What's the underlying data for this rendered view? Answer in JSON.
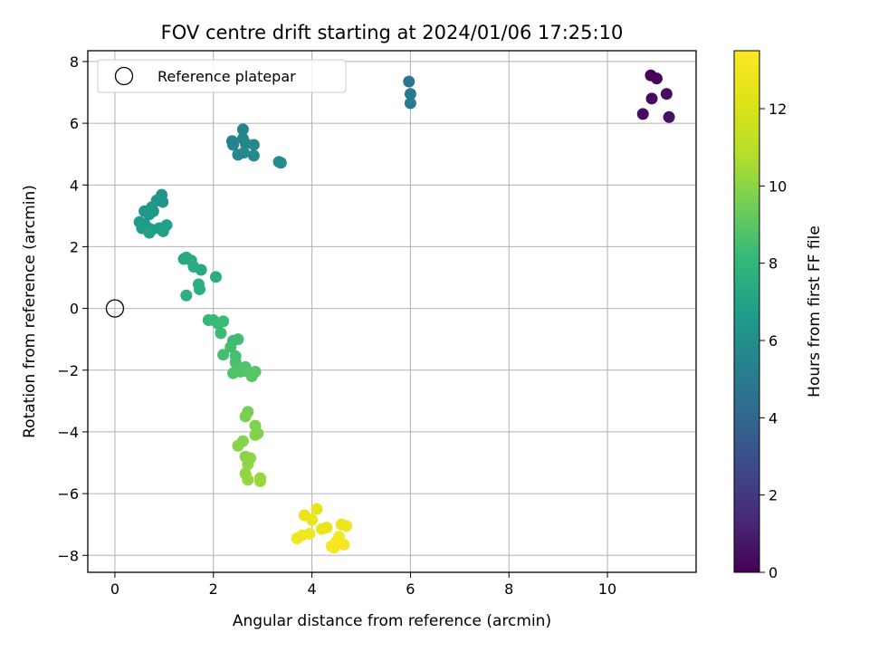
{
  "chart_data": {
    "type": "scatter",
    "title": "FOV centre drift starting at 2024/01/06 17:25:10",
    "xlabel": "Angular distance from reference (arcmin)",
    "ylabel": "Rotation from reference (arcmin)",
    "xlim": [
      -0.55,
      11.8
    ],
    "ylim": [
      -8.55,
      8.35
    ],
    "xticks": [
      0,
      2,
      4,
      6,
      8,
      10
    ],
    "yticks": [
      -8,
      -6,
      -4,
      -2,
      0,
      2,
      4,
      6,
      8
    ],
    "grid": true,
    "legend": {
      "placement": "top-left",
      "entries": [
        "Reference platepar"
      ]
    },
    "reference_point": {
      "x": 0,
      "y": 0,
      "label": "Reference platepar"
    },
    "colorbar": {
      "label": "Hours from first FF file",
      "min": 0,
      "max": 13.5,
      "ticks": [
        0,
        2,
        4,
        6,
        8,
        10,
        12
      ],
      "colormap": "viridis"
    },
    "points": [
      {
        "x": 10.88,
        "y": 7.55,
        "t": 0.1
      },
      {
        "x": 11.0,
        "y": 7.45,
        "t": 0.2
      },
      {
        "x": 10.9,
        "y": 6.8,
        "t": 0.3
      },
      {
        "x": 11.2,
        "y": 6.95,
        "t": 0.4
      },
      {
        "x": 10.72,
        "y": 6.3,
        "t": 0.5
      },
      {
        "x": 11.25,
        "y": 6.2,
        "t": 0.6
      },
      {
        "x": 5.97,
        "y": 7.35,
        "t": 4.8
      },
      {
        "x": 6.0,
        "y": 6.95,
        "t": 4.9
      },
      {
        "x": 6.0,
        "y": 6.65,
        "t": 5.0
      },
      {
        "x": 2.38,
        "y": 5.42,
        "t": 5.4
      },
      {
        "x": 2.4,
        "y": 5.3,
        "t": 5.45
      },
      {
        "x": 2.6,
        "y": 5.8,
        "t": 5.5
      },
      {
        "x": 2.6,
        "y": 5.5,
        "t": 5.55
      },
      {
        "x": 2.65,
        "y": 5.35,
        "t": 5.6
      },
      {
        "x": 2.82,
        "y": 5.3,
        "t": 5.65
      },
      {
        "x": 2.5,
        "y": 4.98,
        "t": 5.7
      },
      {
        "x": 2.62,
        "y": 5.05,
        "t": 5.75
      },
      {
        "x": 2.82,
        "y": 4.95,
        "t": 5.8
      },
      {
        "x": 3.33,
        "y": 4.75,
        "t": 5.9
      },
      {
        "x": 3.37,
        "y": 4.72,
        "t": 5.95
      },
      {
        "x": 0.95,
        "y": 3.68,
        "t": 6.2
      },
      {
        "x": 0.85,
        "y": 3.5,
        "t": 6.25
      },
      {
        "x": 0.97,
        "y": 3.45,
        "t": 6.3
      },
      {
        "x": 0.75,
        "y": 3.28,
        "t": 6.35
      },
      {
        "x": 0.6,
        "y": 3.15,
        "t": 6.4
      },
      {
        "x": 0.7,
        "y": 3.05,
        "t": 6.45
      },
      {
        "x": 0.78,
        "y": 3.15,
        "t": 6.5
      },
      {
        "x": 0.5,
        "y": 2.8,
        "t": 6.55
      },
      {
        "x": 0.6,
        "y": 2.75,
        "t": 6.6
      },
      {
        "x": 0.55,
        "y": 2.6,
        "t": 6.65
      },
      {
        "x": 0.68,
        "y": 2.6,
        "t": 6.7
      },
      {
        "x": 0.75,
        "y": 2.55,
        "t": 6.75
      },
      {
        "x": 0.9,
        "y": 2.6,
        "t": 6.8
      },
      {
        "x": 0.98,
        "y": 2.5,
        "t": 6.85
      },
      {
        "x": 1.05,
        "y": 2.7,
        "t": 6.9
      },
      {
        "x": 0.7,
        "y": 2.45,
        "t": 6.95
      },
      {
        "x": 1.4,
        "y": 1.6,
        "t": 7.3
      },
      {
        "x": 1.45,
        "y": 1.65,
        "t": 7.35
      },
      {
        "x": 1.55,
        "y": 1.55,
        "t": 7.4
      },
      {
        "x": 1.6,
        "y": 1.35,
        "t": 7.45
      },
      {
        "x": 1.75,
        "y": 1.25,
        "t": 7.5
      },
      {
        "x": 2.05,
        "y": 1.02,
        "t": 7.55
      },
      {
        "x": 1.7,
        "y": 0.78,
        "t": 7.6
      },
      {
        "x": 1.72,
        "y": 0.62,
        "t": 7.65
      },
      {
        "x": 1.45,
        "y": 0.42,
        "t": 7.7
      },
      {
        "x": 1.9,
        "y": -0.38,
        "t": 8.1
      },
      {
        "x": 2.0,
        "y": -0.38,
        "t": 8.15
      },
      {
        "x": 2.1,
        "y": -0.5,
        "t": 8.2
      },
      {
        "x": 2.2,
        "y": -0.42,
        "t": 8.25
      },
      {
        "x": 2.15,
        "y": -0.8,
        "t": 8.3
      },
      {
        "x": 2.4,
        "y": -1.05,
        "t": 8.35
      },
      {
        "x": 2.5,
        "y": -1.0,
        "t": 8.4
      },
      {
        "x": 2.35,
        "y": -1.25,
        "t": 8.45
      },
      {
        "x": 2.2,
        "y": -1.5,
        "t": 8.5
      },
      {
        "x": 2.45,
        "y": -1.55,
        "t": 8.55
      },
      {
        "x": 2.45,
        "y": -1.75,
        "t": 8.6
      },
      {
        "x": 2.5,
        "y": -1.95,
        "t": 8.65
      },
      {
        "x": 2.65,
        "y": -1.9,
        "t": 8.7
      },
      {
        "x": 2.4,
        "y": -2.1,
        "t": 8.75
      },
      {
        "x": 2.55,
        "y": -2.05,
        "t": 8.8
      },
      {
        "x": 2.7,
        "y": -2.05,
        "t": 8.85
      },
      {
        "x": 2.85,
        "y": -2.05,
        "t": 8.9
      },
      {
        "x": 2.78,
        "y": -2.2,
        "t": 8.95
      },
      {
        "x": 2.7,
        "y": -3.35,
        "t": 9.6
      },
      {
        "x": 2.65,
        "y": -3.5,
        "t": 9.65
      },
      {
        "x": 2.85,
        "y": -3.8,
        "t": 9.7
      },
      {
        "x": 2.9,
        "y": -4.05,
        "t": 9.75
      },
      {
        "x": 2.85,
        "y": -4.1,
        "t": 9.8
      },
      {
        "x": 2.6,
        "y": -4.3,
        "t": 9.85
      },
      {
        "x": 2.5,
        "y": -4.45,
        "t": 9.9
      },
      {
        "x": 2.65,
        "y": -4.8,
        "t": 9.95
      },
      {
        "x": 2.75,
        "y": -4.85,
        "t": 10.0
      },
      {
        "x": 2.7,
        "y": -5.05,
        "t": 10.05
      },
      {
        "x": 2.65,
        "y": -5.35,
        "t": 10.1
      },
      {
        "x": 2.7,
        "y": -5.55,
        "t": 10.15
      },
      {
        "x": 2.95,
        "y": -5.5,
        "t": 10.2
      },
      {
        "x": 2.95,
        "y": -5.6,
        "t": 10.25
      },
      {
        "x": 4.1,
        "y": -6.5,
        "t": 12.6
      },
      {
        "x": 3.85,
        "y": -6.7,
        "t": 12.65
      },
      {
        "x": 4.0,
        "y": -6.85,
        "t": 12.7
      },
      {
        "x": 4.3,
        "y": -7.1,
        "t": 12.75
      },
      {
        "x": 4.2,
        "y": -7.15,
        "t": 12.8
      },
      {
        "x": 4.6,
        "y": -7.0,
        "t": 12.85
      },
      {
        "x": 4.7,
        "y": -7.05,
        "t": 12.9
      },
      {
        "x": 3.95,
        "y": -7.3,
        "t": 12.95
      },
      {
        "x": 3.7,
        "y": -7.45,
        "t": 13.0
      },
      {
        "x": 3.8,
        "y": -7.35,
        "t": 13.05
      },
      {
        "x": 4.55,
        "y": -7.4,
        "t": 13.1
      },
      {
        "x": 4.5,
        "y": -7.55,
        "t": 13.15
      },
      {
        "x": 4.4,
        "y": -7.7,
        "t": 13.2
      },
      {
        "x": 4.65,
        "y": -7.65,
        "t": 13.25
      },
      {
        "x": 4.45,
        "y": -7.75,
        "t": 13.3
      }
    ]
  }
}
